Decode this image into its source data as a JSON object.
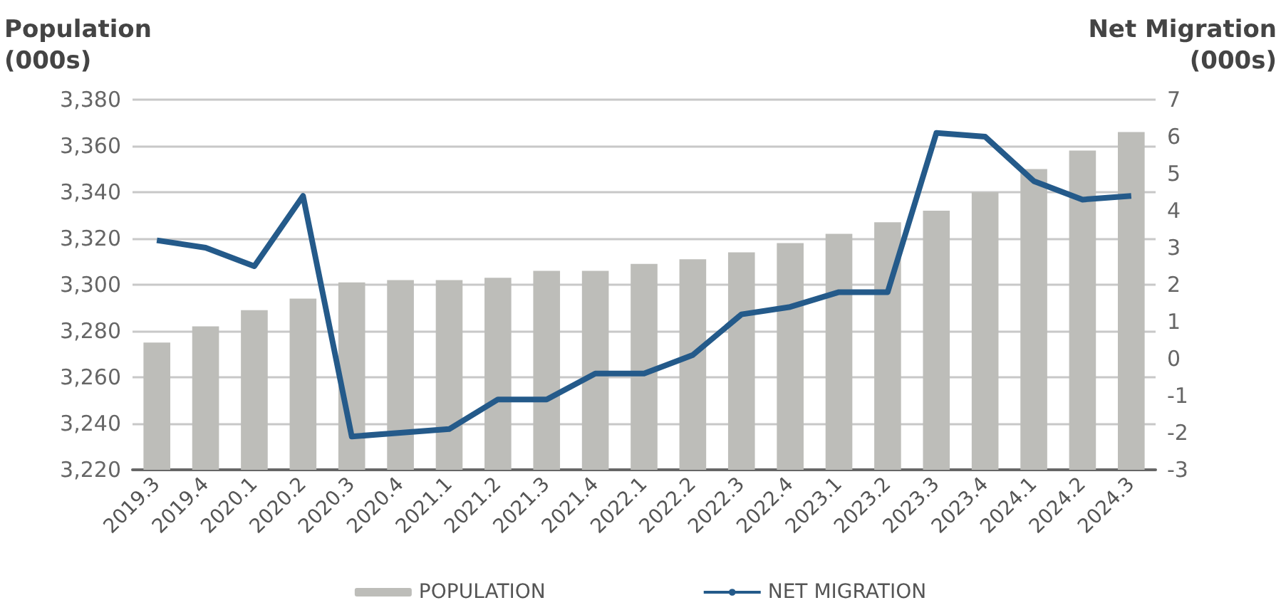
{
  "chart_data": {
    "type": "bar",
    "ylabel": "Population\n(000s)",
    "y2label": "Net Migration\n(000s)",
    "categories": [
      "2019.3",
      "2019.4",
      "2020.1",
      "2020.2",
      "2020.3",
      "2020.4",
      "2021.1",
      "2021.2",
      "2021.3",
      "2021.4",
      "2022.1",
      "2022.2",
      "2022.3",
      "2022.4",
      "2023.1",
      "2023.2",
      "2023.3",
      "2023.4",
      "2024.1",
      "2024.2",
      "2024.3"
    ],
    "series": [
      {
        "name": "POPULATION",
        "color": "#bdbdb9",
        "values": [
          3275,
          3282,
          3289,
          3294,
          3301,
          3302,
          3302,
          3303,
          3306,
          3306,
          3309,
          3311,
          3314,
          3318,
          3322,
          3327,
          3332,
          3340,
          3350,
          3358,
          3366
        ]
      },
      {
        "name": "NET MIGRATION",
        "type": "line",
        "axis": "y2",
        "color": "#245a8a",
        "values": [
          3.2,
          3.0,
          2.5,
          4.4,
          -2.1,
          -2.0,
          -1.9,
          -1.1,
          -1.1,
          -0.4,
          -0.4,
          0.1,
          1.2,
          1.4,
          1.8,
          1.8,
          6.1,
          6.0,
          4.8,
          4.3,
          4.4
        ]
      }
    ],
    "ylim": [
      3220,
      3380
    ],
    "yticks": [
      {
        "value": 3220,
        "label": "3,220"
      },
      {
        "value": 3240,
        "label": "3,240"
      },
      {
        "value": 3260,
        "label": "3,260"
      },
      {
        "value": 3280,
        "label": "3,280"
      },
      {
        "value": 3300,
        "label": "3,300"
      },
      {
        "value": 3320,
        "label": "3,320"
      },
      {
        "value": 3340,
        "label": "3,340"
      },
      {
        "value": 3360,
        "label": "3,360"
      },
      {
        "value": 3380,
        "label": "3,380"
      }
    ],
    "y2lim": [
      -3,
      7
    ],
    "y2ticks": [
      -3,
      -2,
      -1,
      0,
      1,
      2,
      3,
      4,
      5,
      6,
      7
    ],
    "grid": "y",
    "legend": "bottom",
    "marker": "none",
    "line_style": "solid"
  }
}
